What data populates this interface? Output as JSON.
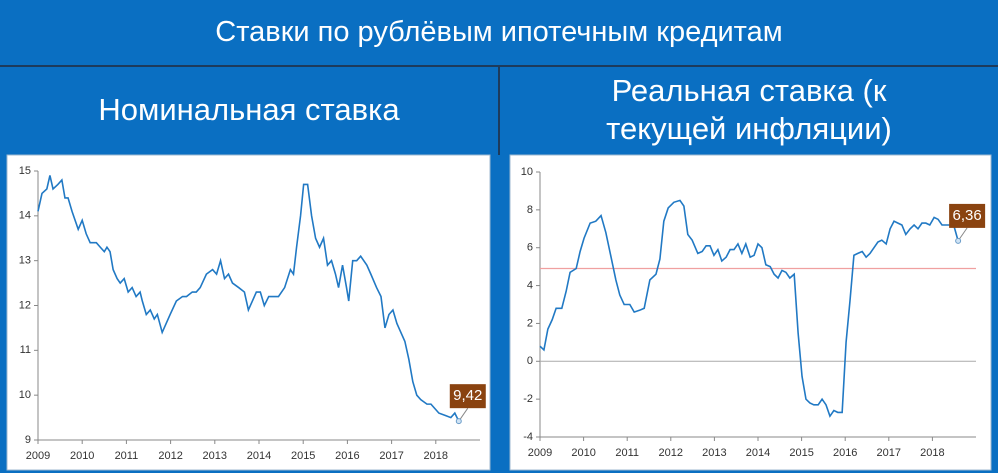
{
  "title": "Ставки по рублёвым ипотечным кредитам",
  "chart_data": [
    {
      "type": "line",
      "title": "Номинальная ставка",
      "xlim": [
        2009,
        2019
      ],
      "xticks": [
        2009,
        2010,
        2011,
        2012,
        2013,
        2014,
        2015,
        2016,
        2017,
        2018
      ],
      "ylim": [
        9,
        15
      ],
      "yticks": [
        9,
        10,
        11,
        12,
        13,
        14,
        15
      ],
      "grid": false,
      "series": [
        {
          "color": "#2179c4",
          "x": [
            2009.0,
            2009.09,
            2009.2,
            2009.27,
            2009.34,
            2009.45,
            2009.54,
            2009.61,
            2009.68,
            2009.77,
            2009.91,
            2010.0,
            2010.09,
            2010.18,
            2010.32,
            2010.41,
            2010.5,
            2010.56,
            2010.63,
            2010.7,
            2010.79,
            2010.86,
            2010.95,
            2011.04,
            2011.13,
            2011.22,
            2011.31,
            2011.36,
            2011.45,
            2011.54,
            2011.63,
            2011.7,
            2011.81,
            2011.9,
            2011.99,
            2012.13,
            2012.27,
            2012.36,
            2012.49,
            2012.58,
            2012.67,
            2012.81,
            2012.95,
            2013.04,
            2013.13,
            2013.22,
            2013.31,
            2013.4,
            2013.54,
            2013.67,
            2013.76,
            2013.85,
            2013.94,
            2014.03,
            2014.12,
            2014.22,
            2014.31,
            2014.44,
            2014.58,
            2014.71,
            2014.78,
            2014.85,
            2014.94,
            2015.01,
            2015.1,
            2015.19,
            2015.28,
            2015.37,
            2015.46,
            2015.55,
            2015.64,
            2015.73,
            2015.8,
            2015.89,
            2015.98,
            2016.03,
            2016.12,
            2016.21,
            2016.3,
            2016.44,
            2016.53,
            2016.66,
            2016.76,
            2016.85,
            2016.94,
            2017.03,
            2017.12,
            2017.21,
            2017.3,
            2017.39,
            2017.48,
            2017.57,
            2017.66,
            2017.8,
            2017.89,
            2017.98,
            2018.07,
            2018.21,
            2018.34,
            2018.43,
            2018.52
          ],
          "values": [
            14.1,
            14.5,
            14.6,
            14.9,
            14.6,
            14.7,
            14.8,
            14.4,
            14.4,
            14.1,
            13.7,
            13.9,
            13.6,
            13.4,
            13.4,
            13.3,
            13.2,
            13.3,
            13.2,
            12.8,
            12.6,
            12.5,
            12.6,
            12.3,
            12.4,
            12.2,
            12.3,
            12.1,
            11.8,
            11.9,
            11.7,
            11.8,
            11.4,
            11.6,
            11.8,
            12.1,
            12.2,
            12.2,
            12.3,
            12.3,
            12.4,
            12.7,
            12.8,
            12.7,
            13.0,
            12.6,
            12.7,
            12.5,
            12.4,
            12.3,
            11.9,
            12.1,
            12.3,
            12.3,
            12.0,
            12.2,
            12.2,
            12.2,
            12.4,
            12.8,
            12.7,
            13.3,
            14.0,
            14.7,
            14.7,
            14.0,
            13.5,
            13.3,
            13.5,
            12.9,
            13.0,
            12.7,
            12.4,
            12.9,
            12.4,
            12.1,
            13.0,
            13.0,
            13.1,
            12.9,
            12.7,
            12.4,
            12.2,
            11.5,
            11.8,
            11.9,
            11.6,
            11.4,
            11.2,
            10.8,
            10.3,
            10.0,
            9.9,
            9.8,
            9.8,
            9.7,
            9.6,
            9.55,
            9.5,
            9.6,
            9.42
          ],
          "value_labels": [
            null,
            null,
            null,
            null,
            null,
            null,
            null,
            null,
            null,
            null,
            null,
            null,
            null,
            null,
            null,
            null,
            null,
            null,
            null,
            null,
            null,
            null,
            null,
            null,
            null,
            null,
            null,
            null,
            null,
            null,
            null,
            null,
            null,
            null,
            null,
            null,
            null,
            null,
            null,
            null,
            null,
            null,
            null,
            null,
            null,
            null,
            null,
            null,
            null,
            null,
            null,
            null,
            null,
            null,
            null,
            null,
            null,
            null,
            null,
            null,
            null,
            null,
            null,
            null,
            null,
            null,
            null,
            null,
            null,
            null,
            null,
            null,
            null,
            null,
            null,
            null,
            null,
            null,
            null,
            null,
            null,
            null,
            null,
            null,
            null,
            null,
            null,
            null,
            null,
            null,
            null,
            null,
            null,
            null,
            null,
            null,
            null,
            null,
            null,
            null,
            "9,42"
          ]
        }
      ]
    },
    {
      "type": "line",
      "title": "Реальная ставка (к текущей инфляции)",
      "xlim": [
        2009,
        2019
      ],
      "xticks": [
        2009,
        2010,
        2011,
        2012,
        2013,
        2014,
        2015,
        2016,
        2017,
        2018
      ],
      "ylim": [
        -4,
        10
      ],
      "yticks": [
        -4,
        -2,
        0,
        2,
        4,
        6,
        8,
        10
      ],
      "grid": false,
      "reference_line": {
        "value": 4.9,
        "color": "#f0a0a0"
      },
      "series": [
        {
          "color": "#2179c4",
          "x": [
            2009.0,
            2009.09,
            2009.18,
            2009.28,
            2009.37,
            2009.5,
            2009.6,
            2009.69,
            2009.83,
            2009.92,
            2010.01,
            2010.15,
            2010.28,
            2010.4,
            2010.51,
            2010.63,
            2010.74,
            2010.83,
            2010.93,
            2011.06,
            2011.16,
            2011.29,
            2011.39,
            2011.52,
            2011.66,
            2011.75,
            2011.84,
            2011.94,
            2012.07,
            2012.21,
            2012.3,
            2012.39,
            2012.49,
            2012.62,
            2012.72,
            2012.81,
            2012.9,
            2012.99,
            2013.08,
            2013.17,
            2013.27,
            2013.36,
            2013.45,
            2013.54,
            2013.63,
            2013.72,
            2013.82,
            2013.91,
            2014.0,
            2014.09,
            2014.18,
            2014.28,
            2014.37,
            2014.46,
            2014.55,
            2014.64,
            2014.73,
            2014.83,
            2014.92,
            2015.01,
            2015.1,
            2015.19,
            2015.28,
            2015.38,
            2015.47,
            2015.56,
            2015.65,
            2015.74,
            2015.83,
            2015.93,
            2016.02,
            2016.11,
            2016.2,
            2016.29,
            2016.39,
            2016.48,
            2016.57,
            2016.66,
            2016.75,
            2016.84,
            2016.94,
            2017.03,
            2017.12,
            2017.21,
            2017.3,
            2017.39,
            2017.49,
            2017.58,
            2017.67,
            2017.76,
            2017.85,
            2017.94,
            2018.04,
            2018.13,
            2018.22,
            2018.31,
            2018.4,
            2018.5,
            2018.59
          ],
          "values": [
            0.8,
            0.6,
            1.7,
            2.2,
            2.8,
            2.8,
            3.7,
            4.7,
            4.9,
            5.8,
            6.5,
            7.3,
            7.4,
            7.7,
            6.8,
            5.5,
            4.3,
            3.5,
            3.0,
            3.0,
            2.6,
            2.7,
            2.8,
            4.3,
            4.6,
            5.4,
            7.4,
            8.1,
            8.4,
            8.5,
            8.2,
            6.7,
            6.4,
            5.7,
            5.8,
            6.1,
            6.1,
            5.6,
            5.9,
            5.3,
            5.5,
            5.9,
            5.9,
            6.2,
            5.7,
            6.2,
            5.5,
            5.6,
            6.2,
            6.0,
            5.1,
            5.0,
            4.6,
            4.4,
            4.8,
            4.7,
            4.4,
            4.6,
            1.5,
            -0.8,
            -2.0,
            -2.2,
            -2.3,
            -2.3,
            -2.0,
            -2.3,
            -2.9,
            -2.6,
            -2.7,
            -2.7,
            1.0,
            3.2,
            5.6,
            5.7,
            5.8,
            5.5,
            5.7,
            6.0,
            6.3,
            6.4,
            6.2,
            7.0,
            7.4,
            7.3,
            7.2,
            6.7,
            7.0,
            7.2,
            7.0,
            7.3,
            7.3,
            7.2,
            7.6,
            7.5,
            7.2,
            7.2,
            7.2,
            7.1,
            6.36
          ],
          "value_labels": [
            null,
            null,
            null,
            null,
            null,
            null,
            null,
            null,
            null,
            null,
            null,
            null,
            null,
            null,
            null,
            null,
            null,
            null,
            null,
            null,
            null,
            null,
            null,
            null,
            null,
            null,
            null,
            null,
            null,
            null,
            null,
            null,
            null,
            null,
            null,
            null,
            null,
            null,
            null,
            null,
            null,
            null,
            null,
            null,
            null,
            null,
            null,
            null,
            null,
            null,
            null,
            null,
            null,
            null,
            null,
            null,
            null,
            null,
            null,
            null,
            null,
            null,
            null,
            null,
            null,
            null,
            null,
            null,
            null,
            null,
            null,
            null,
            null,
            null,
            null,
            null,
            null,
            null,
            null,
            null,
            null,
            null,
            null,
            null,
            null,
            null,
            null,
            null,
            null,
            null,
            null,
            null,
            null,
            null,
            null,
            null,
            null,
            null,
            "6,36"
          ]
        }
      ]
    }
  ]
}
